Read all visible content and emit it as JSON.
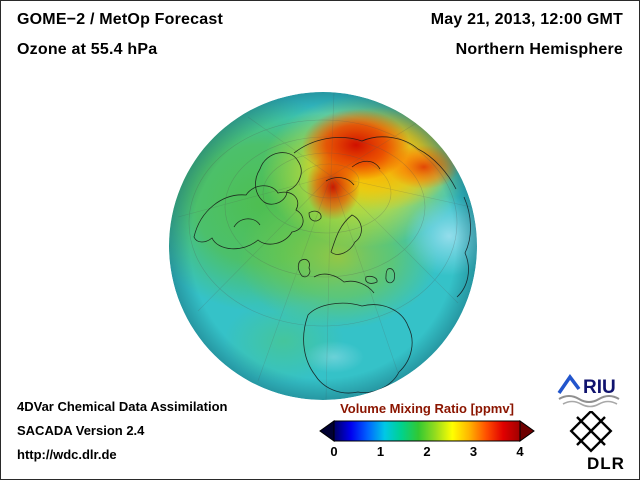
{
  "header": {
    "product": "GOME−2 / MetOp Forecast",
    "level": "Ozone at 55.4 hPa",
    "datetime": "May 21, 2013, 12:00 GMT",
    "region": "Northern Hemisphere"
  },
  "globe": {
    "label": "Northern Hemisphere ozone volume mixing ratio globe"
  },
  "colorbar": {
    "title": "Volume Mixing Ratio [ppmv]",
    "title_color": "#8b1500",
    "unit": "ppmv",
    "min": 0,
    "max": 4,
    "ticks": [
      "0",
      "1",
      "2",
      "3",
      "4"
    ],
    "colors": [
      "#000064",
      "#0000f0",
      "#0064ff",
      "#00c8e6",
      "#00d28c",
      "#32c832",
      "#96dc1e",
      "#ffff00",
      "#ffb400",
      "#ff5000",
      "#e10000",
      "#a00000"
    ],
    "below_color": "#000032",
    "above_color": "#6e0000"
  },
  "footer": {
    "line1": "4DVar Chemical Data Assimilation",
    "line2": "SACADA Version 2.4",
    "line3": "http://wdc.dlr.de"
  },
  "logos": {
    "riu_text": "RIU",
    "riu_blue": "#2255cc",
    "riu_text_color": "#10136e",
    "dlr_text": "DLR",
    "dlr_color": "#000000"
  }
}
